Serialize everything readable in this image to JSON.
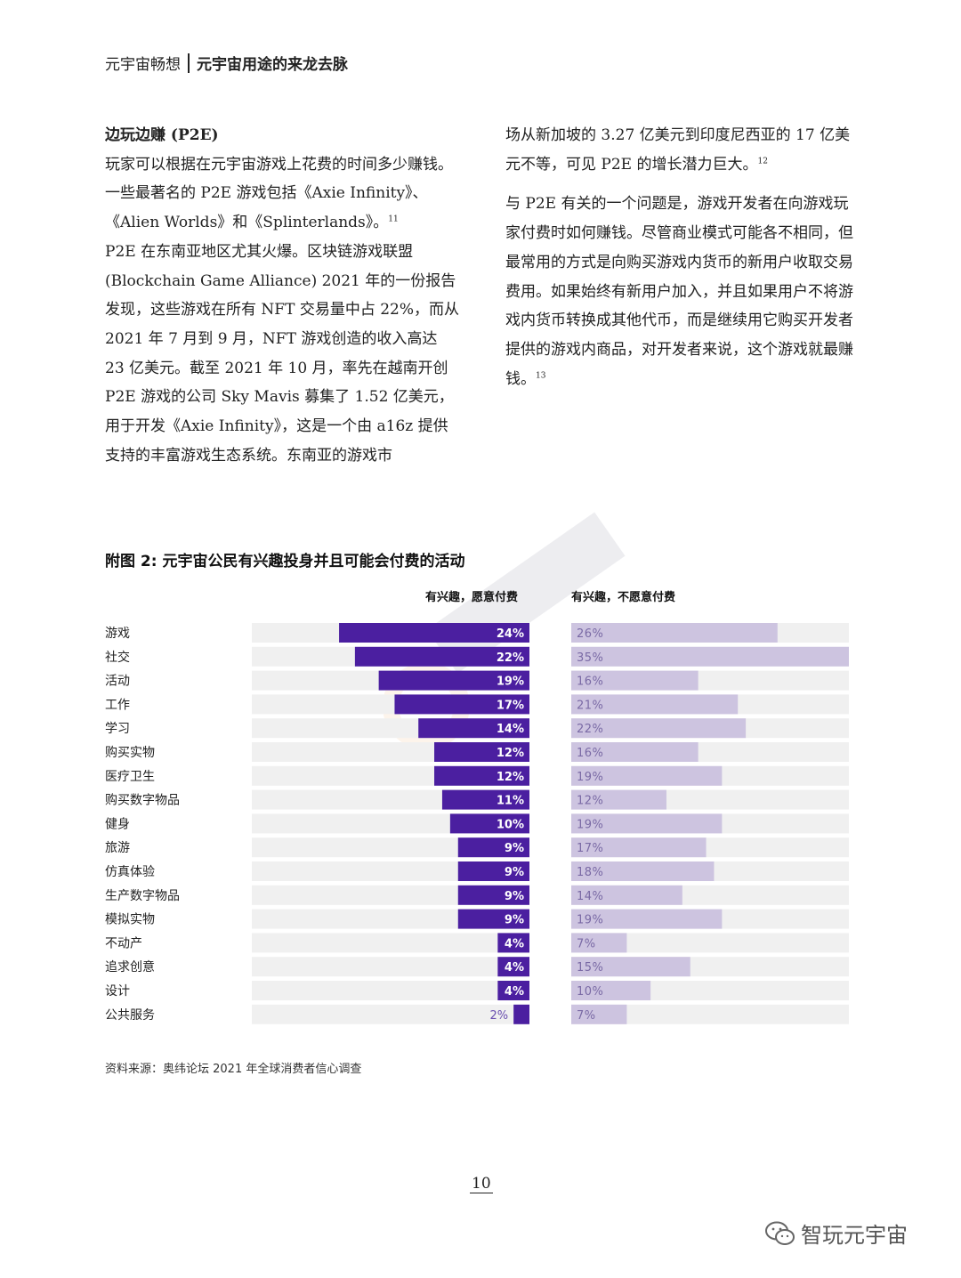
{
  "header": {
    "left": "元宇宙畅想",
    "right": "元宇宙用途的来龙去脉"
  },
  "article": {
    "section_title": "边玩边赚 (P2E)",
    "left_p1": "玩家可以根据在元宇宙游戏上花费的时间多少赚钱。一些最著名的 P2E 游戏包括《Axie Infinity》、《Alien Worlds》和《Splinterlands》。",
    "left_p1_ref": "11",
    "left_p2": "P2E 在东南亚地区尤其火爆。区块链游戏联盟 (Blockchain Game Alliance) 2021 年的一份报告发现，这些游戏在所有 NFT 交易量中占 22%，而从 2021 年 7 月到 9 月，NFT 游戏创造的收入高达 23 亿美元。截至 2021 年 10 月，率先在越南开创 P2E 游戏的公司 Sky Mavis 募集了 1.52 亿美元，用于开发《Axie Infinity》，这是一个由 a16z 提供支持的丰富游戏生态系统。东南亚的游戏市",
    "right_p1": "场从新加坡的 3.27 亿美元到印度尼西亚的 17 亿美元不等，可见 P2E 的增长潜力巨大。",
    "right_p1_ref": "12",
    "right_p2": "与 P2E 有关的一个问题是，游戏开发者在向游戏玩家付费时如何赚钱。尽管商业模式可能各不相同，但最常用的方式是向购买游戏内货币的新用户收取交易费用。如果始终有新用户加入，并且如果用户不将游戏内货币转换成其他代币，而是继续用它购买开发者提供的游戏内商品，对开发者来说，这个游戏就最赚钱。",
    "right_p2_ref": "13"
  },
  "figure": {
    "title": "附图 2: 元宇宙公民有兴趣投身并且可能会付费的活动",
    "source": "资料来源：奥纬论坛 2021 年全球消费者信心调查"
  },
  "chart_data": {
    "type": "bar",
    "orientation": "horizontal",
    "title": "附图 2: 元宇宙公民有兴趣投身并且可能会付费的活动",
    "categories": [
      "游戏",
      "社交",
      "活动",
      "工作",
      "学习",
      "购买实物",
      "医疗卫生",
      "购买数字物品",
      "健身",
      "旅游",
      "仿真体验",
      "生产数字物品",
      "模拟实物",
      "不动产",
      "追求创意",
      "设计",
      "公共服务"
    ],
    "series": [
      {
        "name": "有兴趣，愿意付费",
        "values": [
          24,
          22,
          19,
          17,
          14,
          12,
          12,
          11,
          10,
          9,
          9,
          9,
          9,
          4,
          4,
          4,
          2
        ],
        "color": "#4b1fa0"
      },
      {
        "name": "有兴趣，不愿意付费",
        "values": [
          26,
          35,
          16,
          21,
          22,
          16,
          19,
          12,
          19,
          17,
          18,
          14,
          19,
          7,
          15,
          10,
          7
        ],
        "color": "#cdc4e0"
      }
    ],
    "unit": "%",
    "track_color": "#f0f0f0",
    "xlim_left": [
      0,
      35
    ],
    "xlim_right": [
      0,
      35
    ]
  },
  "page": {
    "number": "10"
  },
  "brand": {
    "wechat_name": "智玩元宇宙"
  }
}
